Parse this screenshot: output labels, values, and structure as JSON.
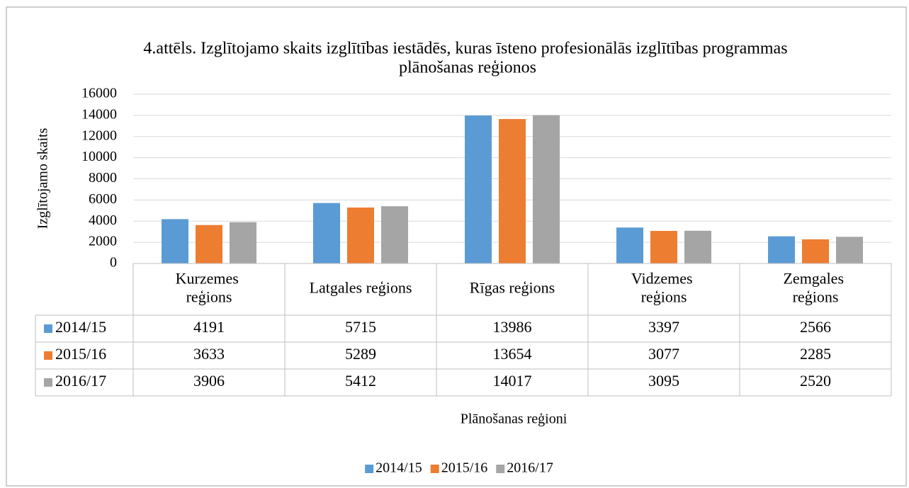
{
  "chart_data": {
    "type": "bar",
    "title": "4.attēls. Izglītojamo skaits izglītības iestādēs, kuras īsteno profesionālās izglītības programmas plānošanas reģionos",
    "x_label": "Plānošanas reģioni",
    "y_label": "Izglītojamo skaits",
    "categories": [
      "Kurzemes reģions",
      "Latgales reģions",
      "Rīgas reģions",
      "Vidzemes reģions",
      "Zemgales reģions"
    ],
    "series": [
      {
        "name": "2014/15",
        "color": "#5b9bd5",
        "values": [
          4191,
          5715,
          13986,
          3397,
          2566
        ]
      },
      {
        "name": "2015/16",
        "color": "#ed7d31",
        "values": [
          3633,
          5289,
          13654,
          3077,
          2285
        ]
      },
      {
        "name": "2016/17",
        "color": "#a5a5a5",
        "values": [
          3906,
          5412,
          14017,
          3095,
          2520
        ]
      }
    ],
    "ylim": [
      0,
      16000
    ],
    "yticks": [
      0,
      2000,
      4000,
      6000,
      8000,
      10000,
      12000,
      14000,
      16000
    ],
    "grid": true,
    "legend": "bottom",
    "data_table": true
  }
}
